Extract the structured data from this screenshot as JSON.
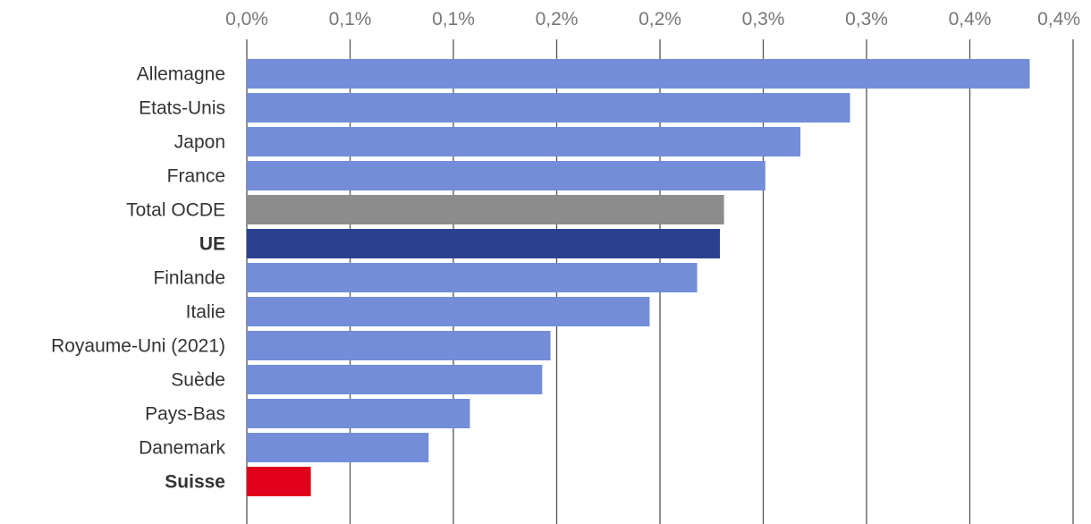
{
  "chart_data": {
    "type": "bar",
    "orientation": "horizontal",
    "title": "",
    "xlabel": "",
    "ylabel": "",
    "xlim": [
      0,
      0.4
    ],
    "x_ticks": [
      0,
      0.05,
      0.1,
      0.15,
      0.2,
      0.25,
      0.3,
      0.35,
      0.4
    ],
    "x_tick_labels": [
      "0,0%",
      "0,1%",
      "0,1%",
      "0,2%",
      "0,2%",
      "0,3%",
      "0,3%",
      "0,4%",
      "0,4%"
    ],
    "grid": true,
    "legend": "none",
    "categories": [
      "Allemagne",
      "Etats-Unis",
      "Japon",
      "France",
      "Total OCDE",
      "UE",
      "Finlande",
      "Italie",
      "Royaume-Uni (2021)",
      "Suède",
      "Pays-Bas",
      "Danemark",
      "Suisse"
    ],
    "values": [
      0.379,
      0.292,
      0.268,
      0.251,
      0.231,
      0.229,
      0.218,
      0.195,
      0.147,
      0.143,
      0.108,
      0.088,
      0.031
    ],
    "bar_colors": [
      "#738dd9",
      "#738dd9",
      "#738dd9",
      "#738dd9",
      "#8c8c8c",
      "#2b418f",
      "#738dd9",
      "#738dd9",
      "#738dd9",
      "#738dd9",
      "#738dd9",
      "#738dd9",
      "#e0001b"
    ],
    "bold_categories": [
      "UE",
      "Suisse"
    ]
  }
}
